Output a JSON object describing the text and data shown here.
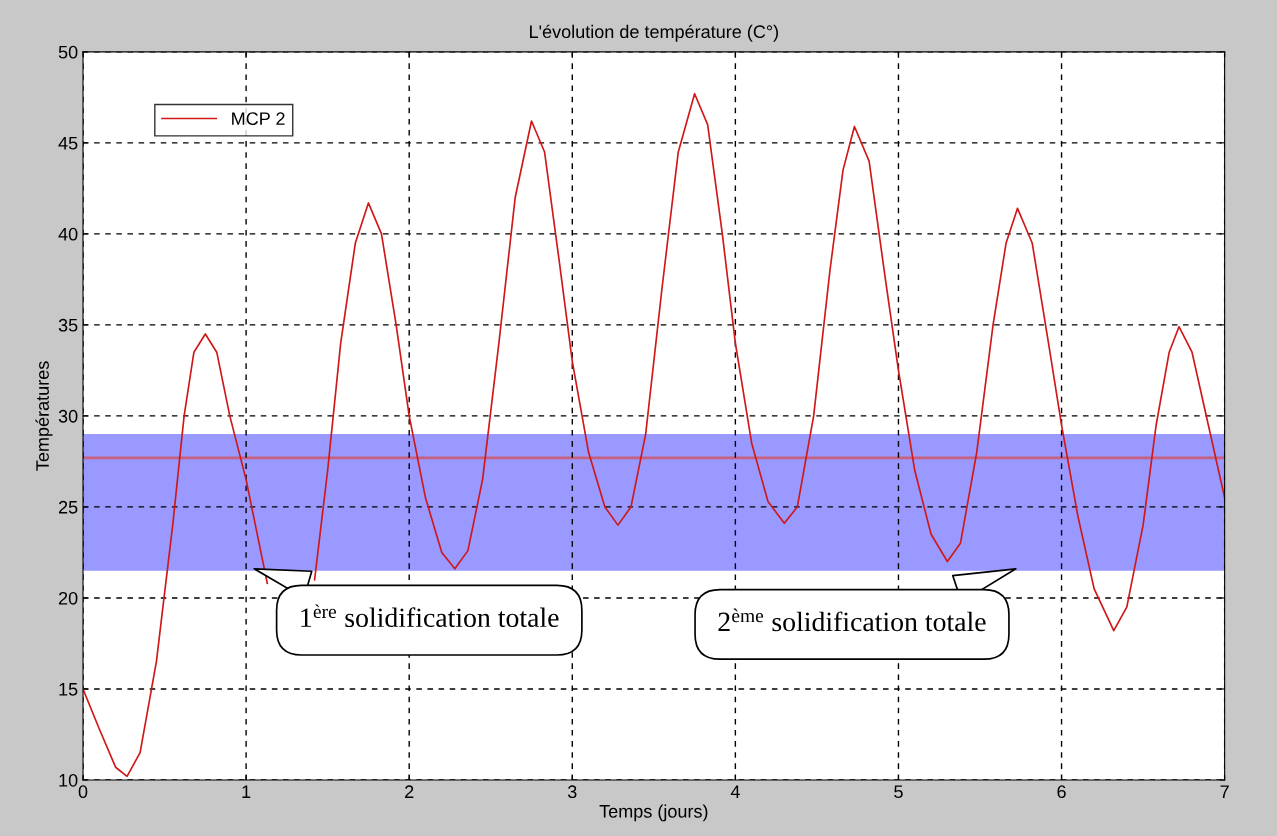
{
  "chart_data": {
    "type": "line",
    "title": "L'évolution de température (C°)",
    "xlabel": "Temps (jours)",
    "ylabel": "Températures",
    "xlim": [
      0,
      7
    ],
    "xticks": [
      0,
      1,
      2,
      3,
      4,
      5,
      6,
      7
    ],
    "ylim": [
      10,
      50
    ],
    "yticks": [
      10,
      15,
      20,
      25,
      30,
      35,
      40,
      45,
      50
    ],
    "grid": true,
    "legend": "top left",
    "series": [
      {
        "name": "MCP 2",
        "color": "#d01818",
        "x": [
          0,
          0.1,
          0.2,
          0.27,
          0.35,
          0.45,
          0.55,
          0.62,
          0.68,
          0.75,
          0.82,
          0.9,
          1.0,
          1.13,
          1.28,
          1.42,
          1.5,
          1.58,
          1.67,
          1.75,
          1.83,
          1.92,
          2.0,
          2.1,
          2.2,
          2.28,
          2.36,
          2.45,
          2.55,
          2.65,
          2.75,
          2.83,
          2.92,
          3.0,
          3.1,
          3.2,
          3.28,
          3.36,
          3.45,
          3.55,
          3.65,
          3.75,
          3.83,
          3.92,
          4.0,
          4.1,
          4.2,
          4.3,
          4.38,
          4.48,
          4.58,
          4.66,
          4.73,
          4.82,
          4.92,
          5.0,
          5.1,
          5.2,
          5.3,
          5.38,
          5.48,
          5.58,
          5.66,
          5.73,
          5.82,
          5.92,
          6.0,
          6.1,
          6.2,
          6.32,
          6.4,
          6.5,
          6.58,
          6.66,
          6.72,
          6.8,
          6.9,
          7.0
        ],
        "values": [
          15,
          12.8,
          10.7,
          10.2,
          11.5,
          16.5,
          24,
          30,
          33.5,
          34.5,
          33.5,
          30,
          26.5,
          20.8,
          null,
          21,
          27,
          34,
          39.5,
          41.7,
          40,
          35,
          30,
          25.5,
          22.5,
          21.6,
          22.6,
          26.5,
          34,
          42,
          46.2,
          44.5,
          38.5,
          33,
          28,
          25,
          24,
          25,
          29,
          37,
          44.5,
          47.7,
          46,
          40,
          34,
          28.5,
          25.3,
          24.1,
          25,
          30,
          38,
          43.5,
          45.9,
          44,
          37.5,
          32.5,
          27,
          23.5,
          22,
          23,
          28,
          35,
          39.5,
          41.4,
          39.5,
          34,
          29.5,
          24.5,
          20.5,
          18.2,
          19.5,
          24,
          29.5,
          33.5,
          34.9,
          33.5,
          29.5,
          25.5
        ]
      }
    ],
    "bands": [
      {
        "axis": "y",
        "from": 21.5,
        "to": 29,
        "color": "#9999ff"
      }
    ],
    "ref_lines": [
      {
        "axis": "y",
        "value": 27.7,
        "color": "#c8607f"
      }
    ],
    "annotations": [
      {
        "text": "1$^{ère}$ solidification totale",
        "x": 1.05,
        "y": 21.6
      },
      {
        "text": "2$^{ème}$ solidification totale",
        "x": 5.72,
        "y": 21.6
      }
    ]
  }
}
